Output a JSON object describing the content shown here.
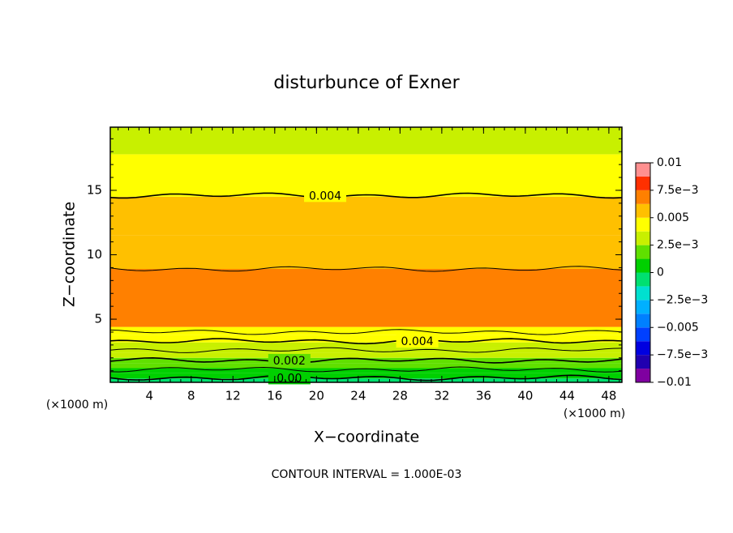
{
  "chart_data": {
    "type": "contour",
    "title": "disturbunce of Exner",
    "xlabel": "X−coordinate",
    "ylabel": "Z−coordinate",
    "x_unit_left": "(×1000 m)",
    "x_unit_right": "(×1000 m)",
    "footer": "CONTOUR INTERVAL = 1.000E-03",
    "xlim": [
      0.25,
      49.25
    ],
    "ylim": [
      0.1,
      19.9
    ],
    "xticks": [
      4,
      8,
      12,
      16,
      20,
      24,
      28,
      32,
      36,
      40,
      44,
      48
    ],
    "yticks": [
      5,
      10,
      15
    ],
    "profile": {
      "z": [
        0.1,
        0.4,
        0.8,
        1.2,
        1.6,
        2.0,
        2.4,
        2.8,
        3.2,
        3.8,
        4.4,
        8.9,
        11.5,
        14.5,
        17.8
      ],
      "values": [
        -0.0003,
        0.0005,
        0.001,
        0.0015,
        0.002,
        0.0027,
        0.003,
        0.0035,
        0.0042,
        0.0047,
        0.0065,
        0.0058,
        0.0052,
        0.0042,
        0.0035
      ]
    },
    "contours": [
      {
        "level": 0,
        "z": 0.45,
        "label": "0.00"
      },
      {
        "level": 0.001,
        "z": 1.1
      },
      {
        "level": 0.002,
        "z": 1.8,
        "label": "0.002"
      },
      {
        "level": 0.003,
        "z": 2.6
      },
      {
        "level": 0.004,
        "z": 3.3,
        "label": "0.004"
      },
      {
        "level": 0.005,
        "z": 4.0
      },
      {
        "level": 0.005,
        "z": 8.9
      },
      {
        "level": 0.004,
        "z": 14.6,
        "label": "0.004"
      }
    ],
    "colorbar": {
      "levels": [
        -0.01,
        -0.00875,
        -0.0075,
        -0.00625,
        -0.005,
        -0.00375,
        -0.0025,
        -0.00125,
        0,
        0.00125,
        0.0025,
        0.00375,
        0.005,
        0.00625,
        0.0075,
        0.00875,
        0.01
      ],
      "colors": [
        "#7f00a0",
        "#2000b0",
        "#0000e0",
        "#0040ff",
        "#0080ff",
        "#00b0ff",
        "#00e0d0",
        "#00e070",
        "#00d000",
        "#60e000",
        "#c8f000",
        "#ffff00",
        "#ffc000",
        "#ff8000",
        "#ff3000",
        "#ff9090"
      ],
      "ticks": [
        0.01,
        {
          "value": 0.0075,
          "label": "7.5e−3"
        },
        0.005,
        {
          "value": 0.0025,
          "label": "2.5e−3"
        },
        0,
        {
          "value": -0.0025,
          "label": "−2.5e−3"
        },
        {
          "value": -0.005,
          "label": "−0.005"
        },
        {
          "value": -0.0075,
          "label": "−7.5e−3"
        },
        {
          "value": -0.01,
          "label": "−0.01"
        }
      ]
    }
  }
}
